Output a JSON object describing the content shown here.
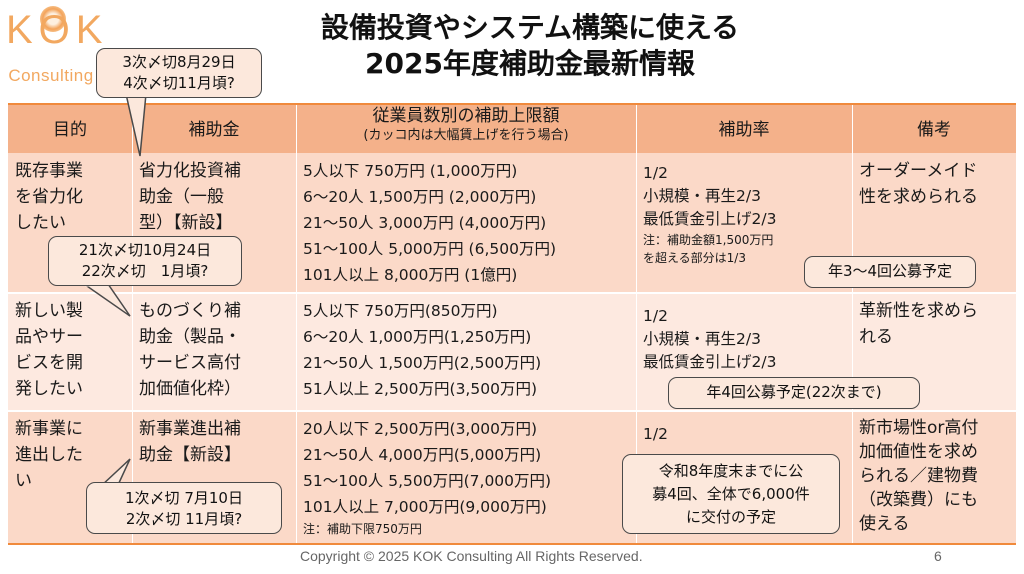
{
  "logo": {
    "top": "KOK",
    "bottom": "Consulting"
  },
  "title": {
    "line1": "設備投資やシステム構築に使える",
    "line2": "2025年度補助金最新情報"
  },
  "header": {
    "purpose": "目的",
    "subsidy": "補助金",
    "limit": "従業員数別の補助上限額",
    "limit_note": "(カッコ内は大幅賃上げを行う場合)",
    "rate": "補助率",
    "note": "備考"
  },
  "rows": [
    {
      "purpose": [
        "既存事業",
        "を省力化",
        "したい"
      ],
      "subsidy": [
        "省力化投資補",
        "助金（一般",
        "型）【新設】"
      ],
      "limits": [
        "5人以下 750万円 (1,000万円)",
        "6～20人 1,500万円 (2,000万円)",
        "21～50人 3,000万円 (4,000万円)",
        "51～100人 5,000万円 (6,500万円)",
        "101人以上 8,000万円 (1億円)"
      ],
      "rates": [
        "1/2",
        "小規模・再生2/3",
        "最低賃金引上げ2/3"
      ],
      "rate_notes": [
        "注：補助金額1,500万円",
        "を超える部分は1/3"
      ],
      "note": [
        "オーダーメイド",
        "性を求められる"
      ]
    },
    {
      "purpose": [
        "新しい製",
        "品やサー",
        "ビスを開",
        "発したい"
      ],
      "subsidy": [
        "ものづくり補",
        "助金（製品・",
        "サービス高付",
        "加価値化枠）"
      ],
      "limits": [
        "5人以下 750万円(850万円)",
        "6～20人 1,000万円(1,250万円)",
        "21～50人 1,500万円(2,500万円)",
        "51人以上 2,500万円(3,500万円)"
      ],
      "rates": [
        "1/2",
        "小規模・再生2/3",
        "最低賃金引上げ2/3"
      ],
      "note": [
        "革新性を求めら",
        "れる"
      ]
    },
    {
      "purpose": [
        "新事業に",
        "進出した",
        "い"
      ],
      "subsidy": [
        "新事業進出補",
        "助金【新設】"
      ],
      "limits": [
        "20人以下 2,500万円(3,000万円)",
        "21～50人 4,000万円(5,000万円)",
        "51～100人 5,500万円(7,000万円)",
        "101人以上 7,000万円(9,000万円)"
      ],
      "limit_note": "注：補助下限750万円",
      "rates": [
        "1/2"
      ],
      "note": [
        "新市場性or高付",
        "加価値性を求め",
        "られる／建物費",
        "（改築費）にも",
        "使える"
      ]
    }
  ],
  "callouts": {
    "c1": [
      "3次〆切8月29日",
      "4次〆切11月頃?"
    ],
    "c2": [
      "21次〆切10月24日",
      "22次〆切　1月頃?"
    ],
    "c3": [
      "1次〆切 7月10日",
      "2次〆切 11月頃?"
    ],
    "c4": [
      "年3～4回公募予定"
    ],
    "c5": [
      "年4回公募予定(22次まで)"
    ],
    "c6": [
      "令和8年度末までに公",
      "募4回、全体で6,000件",
      "に交付の予定"
    ]
  },
  "footer": {
    "copyright": "Copyright © 2025 KOK Consulting All Rights Reserved.",
    "page": "6"
  },
  "colors": {
    "header_bg": "#f4b18a",
    "row_bg_1": "#fbd9c8",
    "row_bg_2": "#fde9e0",
    "accent": "#f08a3c"
  }
}
